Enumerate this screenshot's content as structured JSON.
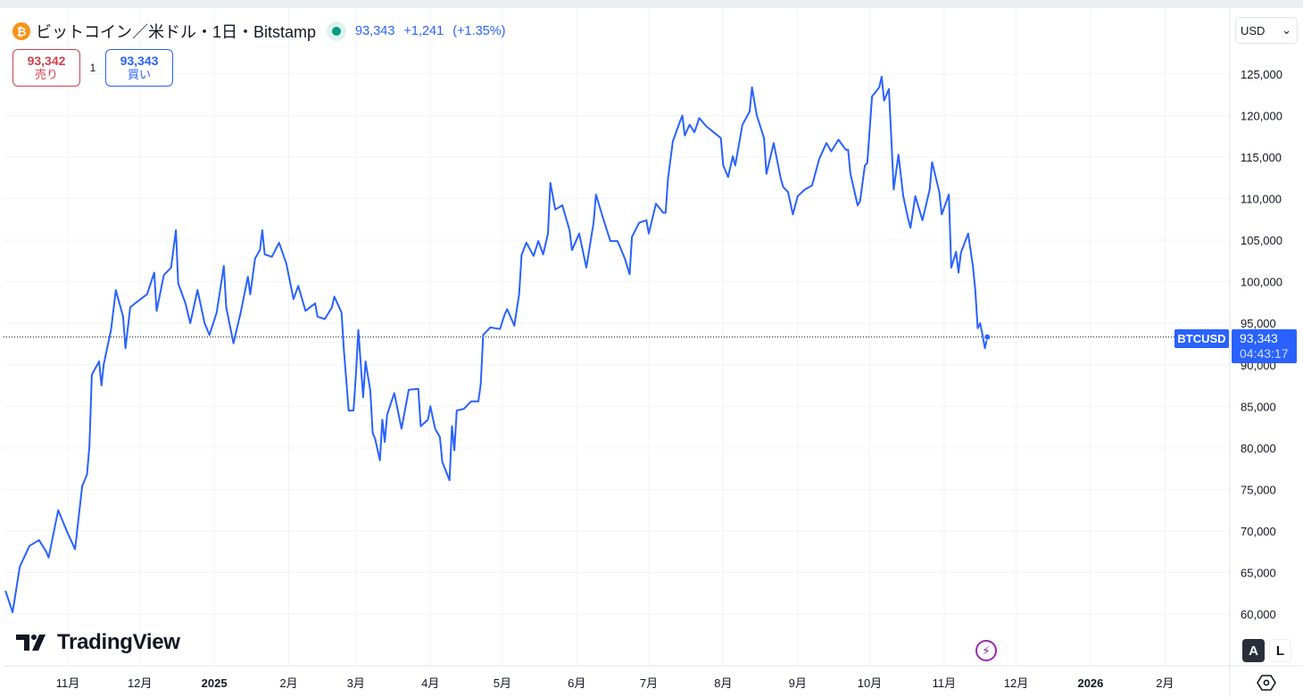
{
  "header": {
    "symbol_title": "ビットコイン／米ドル・1日・Bitstamp",
    "coin_glyph": "₿",
    "last_price": "93,343",
    "change": "+1,241",
    "change_pct": "(+1.35%)"
  },
  "trade": {
    "sell_price": "93,342",
    "sell_label": "売り",
    "quantity": "1",
    "buy_price": "93,343",
    "buy_label": "買い"
  },
  "currency_select": {
    "value": "USD",
    "chevron": "⌄"
  },
  "price_label": {
    "symbol": "BTCUSD",
    "price": "93,343",
    "countdown": "04:43:17"
  },
  "logo": {
    "text": "TradingView"
  },
  "buttons": {
    "auto": "A",
    "log": "L"
  },
  "colors": {
    "line": "#2962ff",
    "sell": "#d0414f",
    "buy": "#2962ff",
    "grid": "#f0f3fa"
  },
  "chart_data": {
    "type": "line",
    "title": "ビットコイン／米ドル・1日・Bitstamp",
    "x_unit": "days since 2024-10-01",
    "ylim": [
      57000,
      130000
    ],
    "y_ticks": [
      {
        "v": 60000,
        "label": "60,000"
      },
      {
        "v": 65000,
        "label": "65,000"
      },
      {
        "v": 70000,
        "label": "70,000"
      },
      {
        "v": 75000,
        "label": "75,000"
      },
      {
        "v": 80000,
        "label": "80,000"
      },
      {
        "v": 85000,
        "label": "85,000"
      },
      {
        "v": 90000,
        "label": "90,000"
      },
      {
        "v": 95000,
        "label": "95,000"
      },
      {
        "v": 100000,
        "label": "100,000"
      },
      {
        "v": 105000,
        "label": "105,000"
      },
      {
        "v": 110000,
        "label": "110,000"
      },
      {
        "v": 115000,
        "label": "115,000"
      },
      {
        "v": 120000,
        "label": "120,000"
      },
      {
        "v": 125000,
        "label": "125,000"
      }
    ],
    "x_ticks": [
      {
        "d": 31,
        "label": "11月",
        "bold": false
      },
      {
        "d": 61,
        "label": "12月",
        "bold": false
      },
      {
        "d": 92,
        "label": "2025",
        "bold": true
      },
      {
        "d": 123,
        "label": "2月",
        "bold": false
      },
      {
        "d": 151,
        "label": "3月",
        "bold": false
      },
      {
        "d": 182,
        "label": "4月",
        "bold": false
      },
      {
        "d": 212,
        "label": "5月",
        "bold": false
      },
      {
        "d": 243,
        "label": "6月",
        "bold": false
      },
      {
        "d": 273,
        "label": "7月",
        "bold": false
      },
      {
        "d": 304,
        "label": "8月",
        "bold": false
      },
      {
        "d": 335,
        "label": "9月",
        "bold": false
      },
      {
        "d": 365,
        "label": "10月",
        "bold": false
      },
      {
        "d": 396,
        "label": "11月",
        "bold": false
      },
      {
        "d": 426,
        "label": "12月",
        "bold": false
      },
      {
        "d": 457,
        "label": "2026",
        "bold": true
      },
      {
        "d": 488,
        "label": "2月",
        "bold": false
      }
    ],
    "last_value": 93343,
    "series": [
      {
        "name": "BTCUSD",
        "points": [
          [
            5,
            62800
          ],
          [
            8,
            60200
          ],
          [
            11,
            65700
          ],
          [
            15,
            68200
          ],
          [
            19,
            68900
          ],
          [
            22,
            67500
          ],
          [
            23,
            66800
          ],
          [
            27,
            72500
          ],
          [
            31,
            69700
          ],
          [
            34,
            67800
          ],
          [
            37,
            75400
          ],
          [
            39,
            76800
          ],
          [
            40,
            80200
          ],
          [
            41,
            88800
          ],
          [
            44,
            90400
          ],
          [
            45,
            87500
          ],
          [
            46,
            90100
          ],
          [
            49,
            94200
          ],
          [
            51,
            99000
          ],
          [
            54,
            95800
          ],
          [
            55,
            92000
          ],
          [
            57,
            96900
          ],
          [
            59,
            97400
          ],
          [
            64,
            98500
          ],
          [
            67,
            101100
          ],
          [
            68,
            96500
          ],
          [
            71,
            100800
          ],
          [
            74,
            101700
          ],
          [
            76,
            106200
          ],
          [
            77,
            99800
          ],
          [
            80,
            97400
          ],
          [
            82,
            95000
          ],
          [
            85,
            99000
          ],
          [
            88,
            95000
          ],
          [
            90,
            93600
          ],
          [
            93,
            96300
          ],
          [
            96,
            101900
          ],
          [
            97,
            96900
          ],
          [
            100,
            92600
          ],
          [
            103,
            96300
          ],
          [
            106,
            100600
          ],
          [
            107,
            98500
          ],
          [
            109,
            102800
          ],
          [
            111,
            103800
          ],
          [
            112,
            106200
          ],
          [
            113,
            103300
          ],
          [
            116,
            103000
          ],
          [
            119,
            104700
          ],
          [
            122,
            102200
          ],
          [
            125,
            97900
          ],
          [
            127,
            99500
          ],
          [
            130,
            96500
          ],
          [
            134,
            97400
          ],
          [
            135,
            95800
          ],
          [
            138,
            95500
          ],
          [
            141,
            96900
          ],
          [
            142,
            98200
          ],
          [
            145,
            96300
          ],
          [
            146,
            91800
          ],
          [
            148,
            84500
          ],
          [
            150,
            84500
          ],
          [
            151,
            88800
          ],
          [
            152,
            94200
          ],
          [
            154,
            86100
          ],
          [
            155,
            90400
          ],
          [
            157,
            86900
          ],
          [
            158,
            81800
          ],
          [
            159,
            81100
          ],
          [
            161,
            78500
          ],
          [
            162,
            83400
          ],
          [
            163,
            80700
          ],
          [
            164,
            84000
          ],
          [
            167,
            86600
          ],
          [
            170,
            82300
          ],
          [
            173,
            87000
          ],
          [
            177,
            87100
          ],
          [
            178,
            82600
          ],
          [
            181,
            83400
          ],
          [
            182,
            85000
          ],
          [
            184,
            82300
          ],
          [
            186,
            81300
          ],
          [
            187,
            78300
          ],
          [
            190,
            76100
          ],
          [
            191,
            82600
          ],
          [
            192,
            79700
          ],
          [
            193,
            84500
          ],
          [
            196,
            84700
          ],
          [
            199,
            85600
          ],
          [
            202,
            85600
          ],
          [
            203,
            87700
          ],
          [
            204,
            93600
          ],
          [
            207,
            94500
          ],
          [
            211,
            94300
          ],
          [
            213,
            96100
          ],
          [
            214,
            96700
          ],
          [
            217,
            94700
          ],
          [
            219,
            98500
          ],
          [
            220,
            103200
          ],
          [
            222,
            104700
          ],
          [
            225,
            103100
          ],
          [
            227,
            104900
          ],
          [
            229,
            103300
          ],
          [
            231,
            105800
          ],
          [
            232,
            111900
          ],
          [
            234,
            108700
          ],
          [
            237,
            109200
          ],
          [
            240,
            106200
          ],
          [
            241,
            103800
          ],
          [
            244,
            105800
          ],
          [
            247,
            101700
          ],
          [
            250,
            107100
          ],
          [
            251,
            110500
          ],
          [
            254,
            107600
          ],
          [
            257,
            104900
          ],
          [
            260,
            104900
          ],
          [
            263,
            102800
          ],
          [
            265,
            100900
          ],
          [
            266,
            105400
          ],
          [
            269,
            107100
          ],
          [
            272,
            107400
          ],
          [
            273,
            105800
          ],
          [
            276,
            109400
          ],
          [
            279,
            108300
          ],
          [
            280,
            108300
          ],
          [
            281,
            112400
          ],
          [
            283,
            116900
          ],
          [
            286,
            119300
          ],
          [
            287,
            120000
          ],
          [
            288,
            117600
          ],
          [
            290,
            118900
          ],
          [
            292,
            118000
          ],
          [
            294,
            119700
          ],
          [
            297,
            118700
          ],
          [
            300,
            118000
          ],
          [
            303,
            117300
          ],
          [
            304,
            114000
          ],
          [
            306,
            112600
          ],
          [
            308,
            115100
          ],
          [
            309,
            114000
          ],
          [
            312,
            118900
          ],
          [
            315,
            120500
          ],
          [
            316,
            123400
          ],
          [
            318,
            120000
          ],
          [
            321,
            117300
          ],
          [
            322,
            113000
          ],
          [
            325,
            116700
          ],
          [
            328,
            112400
          ],
          [
            329,
            111400
          ],
          [
            331,
            110800
          ],
          [
            333,
            108100
          ],
          [
            335,
            110300
          ],
          [
            338,
            111100
          ],
          [
            341,
            111600
          ],
          [
            344,
            114800
          ],
          [
            347,
            116700
          ],
          [
            349,
            115700
          ],
          [
            352,
            117100
          ],
          [
            355,
            115900
          ],
          [
            356,
            115900
          ],
          [
            357,
            113000
          ],
          [
            360,
            109200
          ],
          [
            361,
            109700
          ],
          [
            363,
            114000
          ],
          [
            364,
            114300
          ],
          [
            366,
            122300
          ],
          [
            369,
            123400
          ],
          [
            370,
            124700
          ],
          [
            371,
            121800
          ],
          [
            373,
            123200
          ],
          [
            374,
            117300
          ],
          [
            375,
            111100
          ],
          [
            377,
            115300
          ],
          [
            379,
            110300
          ],
          [
            381,
            107600
          ],
          [
            382,
            106500
          ],
          [
            384,
            110300
          ],
          [
            387,
            107400
          ],
          [
            390,
            111100
          ],
          [
            391,
            114400
          ],
          [
            394,
            110800
          ],
          [
            395,
            108100
          ],
          [
            398,
            110500
          ],
          [
            399,
            101700
          ],
          [
            401,
            103600
          ],
          [
            402,
            101100
          ],
          [
            403,
            103500
          ],
          [
            406,
            105800
          ],
          [
            408,
            101900
          ],
          [
            409,
            99000
          ],
          [
            410,
            94400
          ],
          [
            411,
            95000
          ],
          [
            412,
            93600
          ],
          [
            413,
            92000
          ],
          [
            414,
            93343
          ]
        ]
      }
    ]
  }
}
